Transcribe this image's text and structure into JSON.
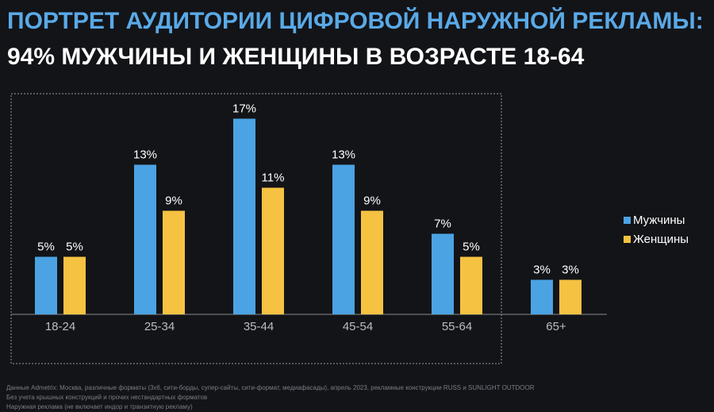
{
  "header": {
    "title_line1": "ПОРТРЕТ АУДИТОРИИ ЦИФРОВОЙ НАРУЖНОЙ РЕКЛАМЫ:",
    "title_line2": "94% МУЖЧИНЫ И ЖЕНЩИНЫ В ВОЗРАСТЕ 18-64"
  },
  "colors": {
    "men": "#4ba3e3",
    "women": "#f5c242",
    "title_accent": "#5aa9e6",
    "highlight_border": "#9a9a9a"
  },
  "chart_data": {
    "type": "bar",
    "categories": [
      "18-24",
      "25-34",
      "35-44",
      "45-54",
      "55-64",
      "65+"
    ],
    "series": [
      {
        "name": "Мужчины",
        "values": [
          5,
          13,
          17,
          13,
          7,
          3
        ],
        "labels": [
          "5%",
          "13%",
          "17%",
          "13%",
          "7%",
          "3%"
        ]
      },
      {
        "name": "Женщины",
        "values": [
          5,
          9,
          11,
          9,
          5,
          3
        ],
        "labels": [
          "5%",
          "9%",
          "11%",
          "9%",
          "5%",
          "3%"
        ]
      }
    ],
    "ylim": [
      0,
      17
    ],
    "unit": "%",
    "grid": false,
    "legend_position": "right",
    "highlighted_categories": [
      "18-24",
      "25-34",
      "35-44",
      "45-54",
      "55-64"
    ]
  },
  "footnotes": [
    "Данные Admetrix: Москва, различные форматы (3х6, сити-борды, супер-сайты, сити-формат, медиафасады), апрель 2023, рекламные конструкции RUSS и SUNLIGHT OUTDOOR",
    "Без учета крышных конструкций и прочих нестандартных форматов",
    "Наружная реклама (не включает индор и транзитную рекламу)"
  ]
}
